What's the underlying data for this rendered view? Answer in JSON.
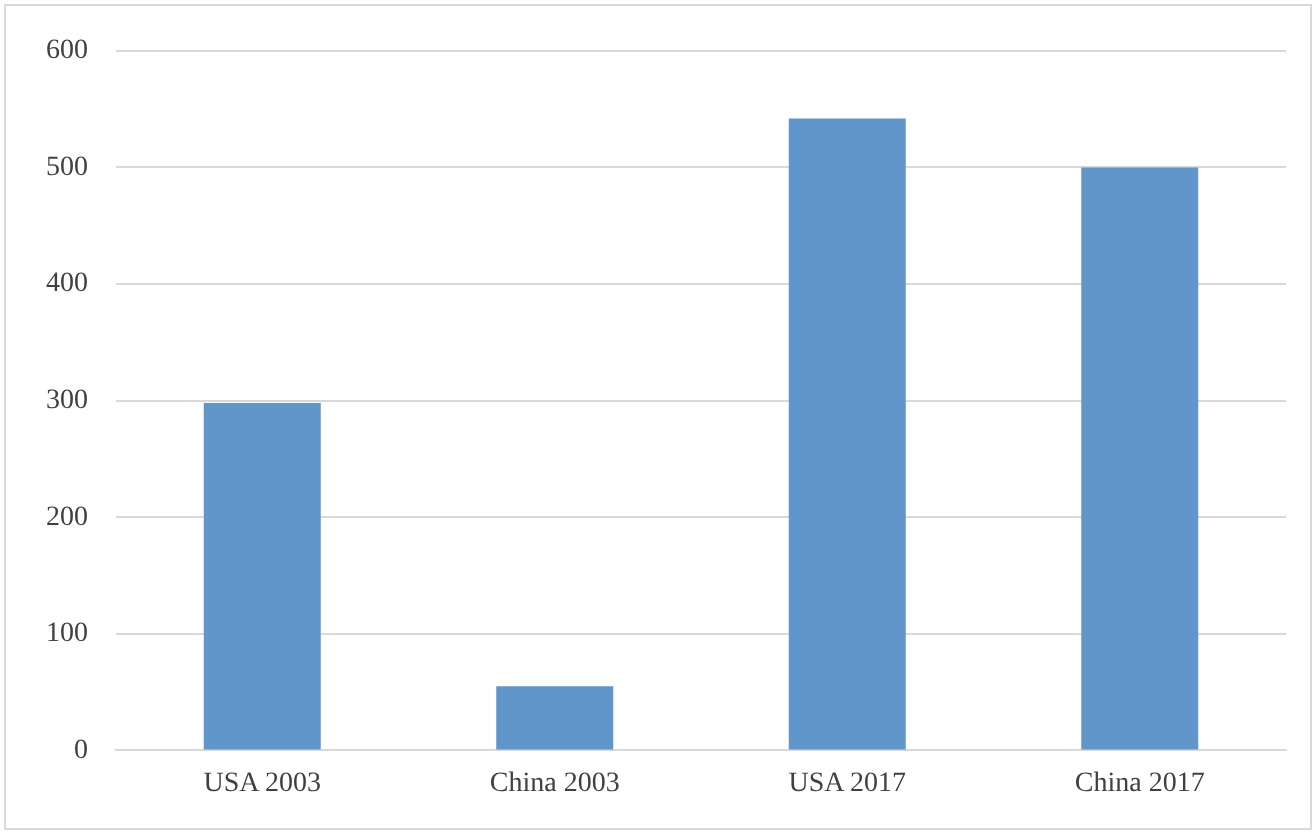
{
  "chart_data": {
    "type": "bar",
    "categories": [
      "USA 2003",
      "China 2003",
      "USA 2017",
      "China 2017"
    ],
    "values": [
      298,
      55,
      542,
      500
    ],
    "color": "#6096c9",
    "ylim": [
      0,
      600
    ],
    "yticks": [
      0,
      100,
      200,
      300,
      400,
      500,
      600
    ],
    "grid": "y"
  }
}
